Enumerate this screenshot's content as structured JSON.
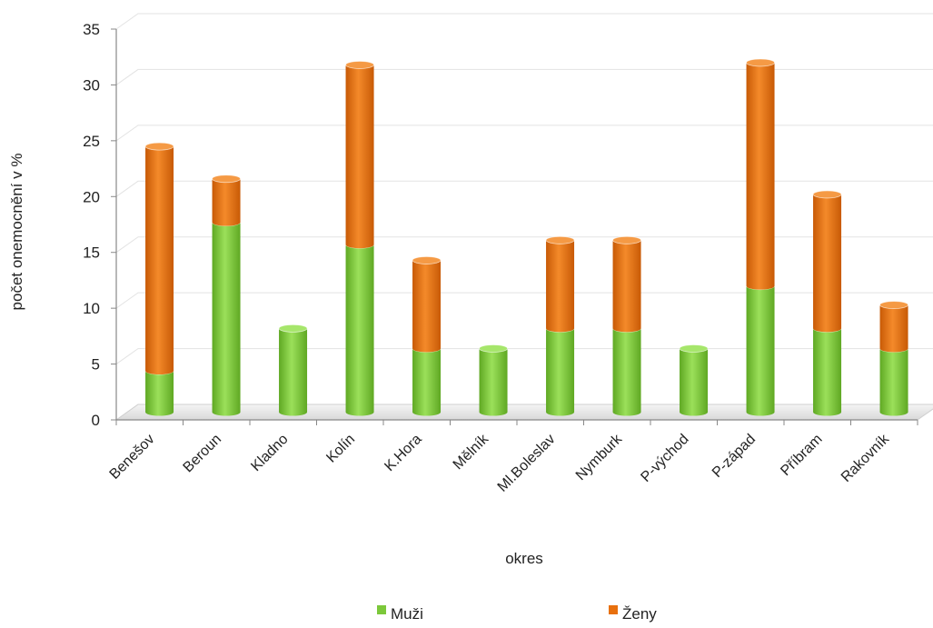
{
  "chart_data": {
    "type": "bar",
    "stacked": true,
    "style": "3d-cylinder",
    "title": "",
    "xlabel": "okres",
    "ylabel": "počet onemocnění v %",
    "ylim": [
      0,
      35
    ],
    "yticks": [
      0,
      5,
      10,
      15,
      20,
      25,
      30,
      35
    ],
    "grid": true,
    "legend_position": "bottom",
    "categories": [
      "Benešov",
      "Beroun",
      "Kladno",
      "Kolín",
      "K.Hora",
      "Mělník",
      "Ml.Boleslav",
      "Nymburk",
      "P-východ",
      "P-západ",
      "Příbram",
      "Rakovník"
    ],
    "series": [
      {
        "name": "Muži",
        "color": "#7cc83a",
        "values": [
          3.7,
          17,
          7.5,
          15,
          5.7,
          5.7,
          7.5,
          7.5,
          5.7,
          11.3,
          7.5,
          5.7
        ]
      },
      {
        "name": "Ženy",
        "color": "#e8700d",
        "values": [
          20.1,
          3.9,
          0,
          16.1,
          7.9,
          0,
          7.9,
          7.9,
          0,
          20.0,
          12.0,
          3.9
        ]
      }
    ]
  }
}
